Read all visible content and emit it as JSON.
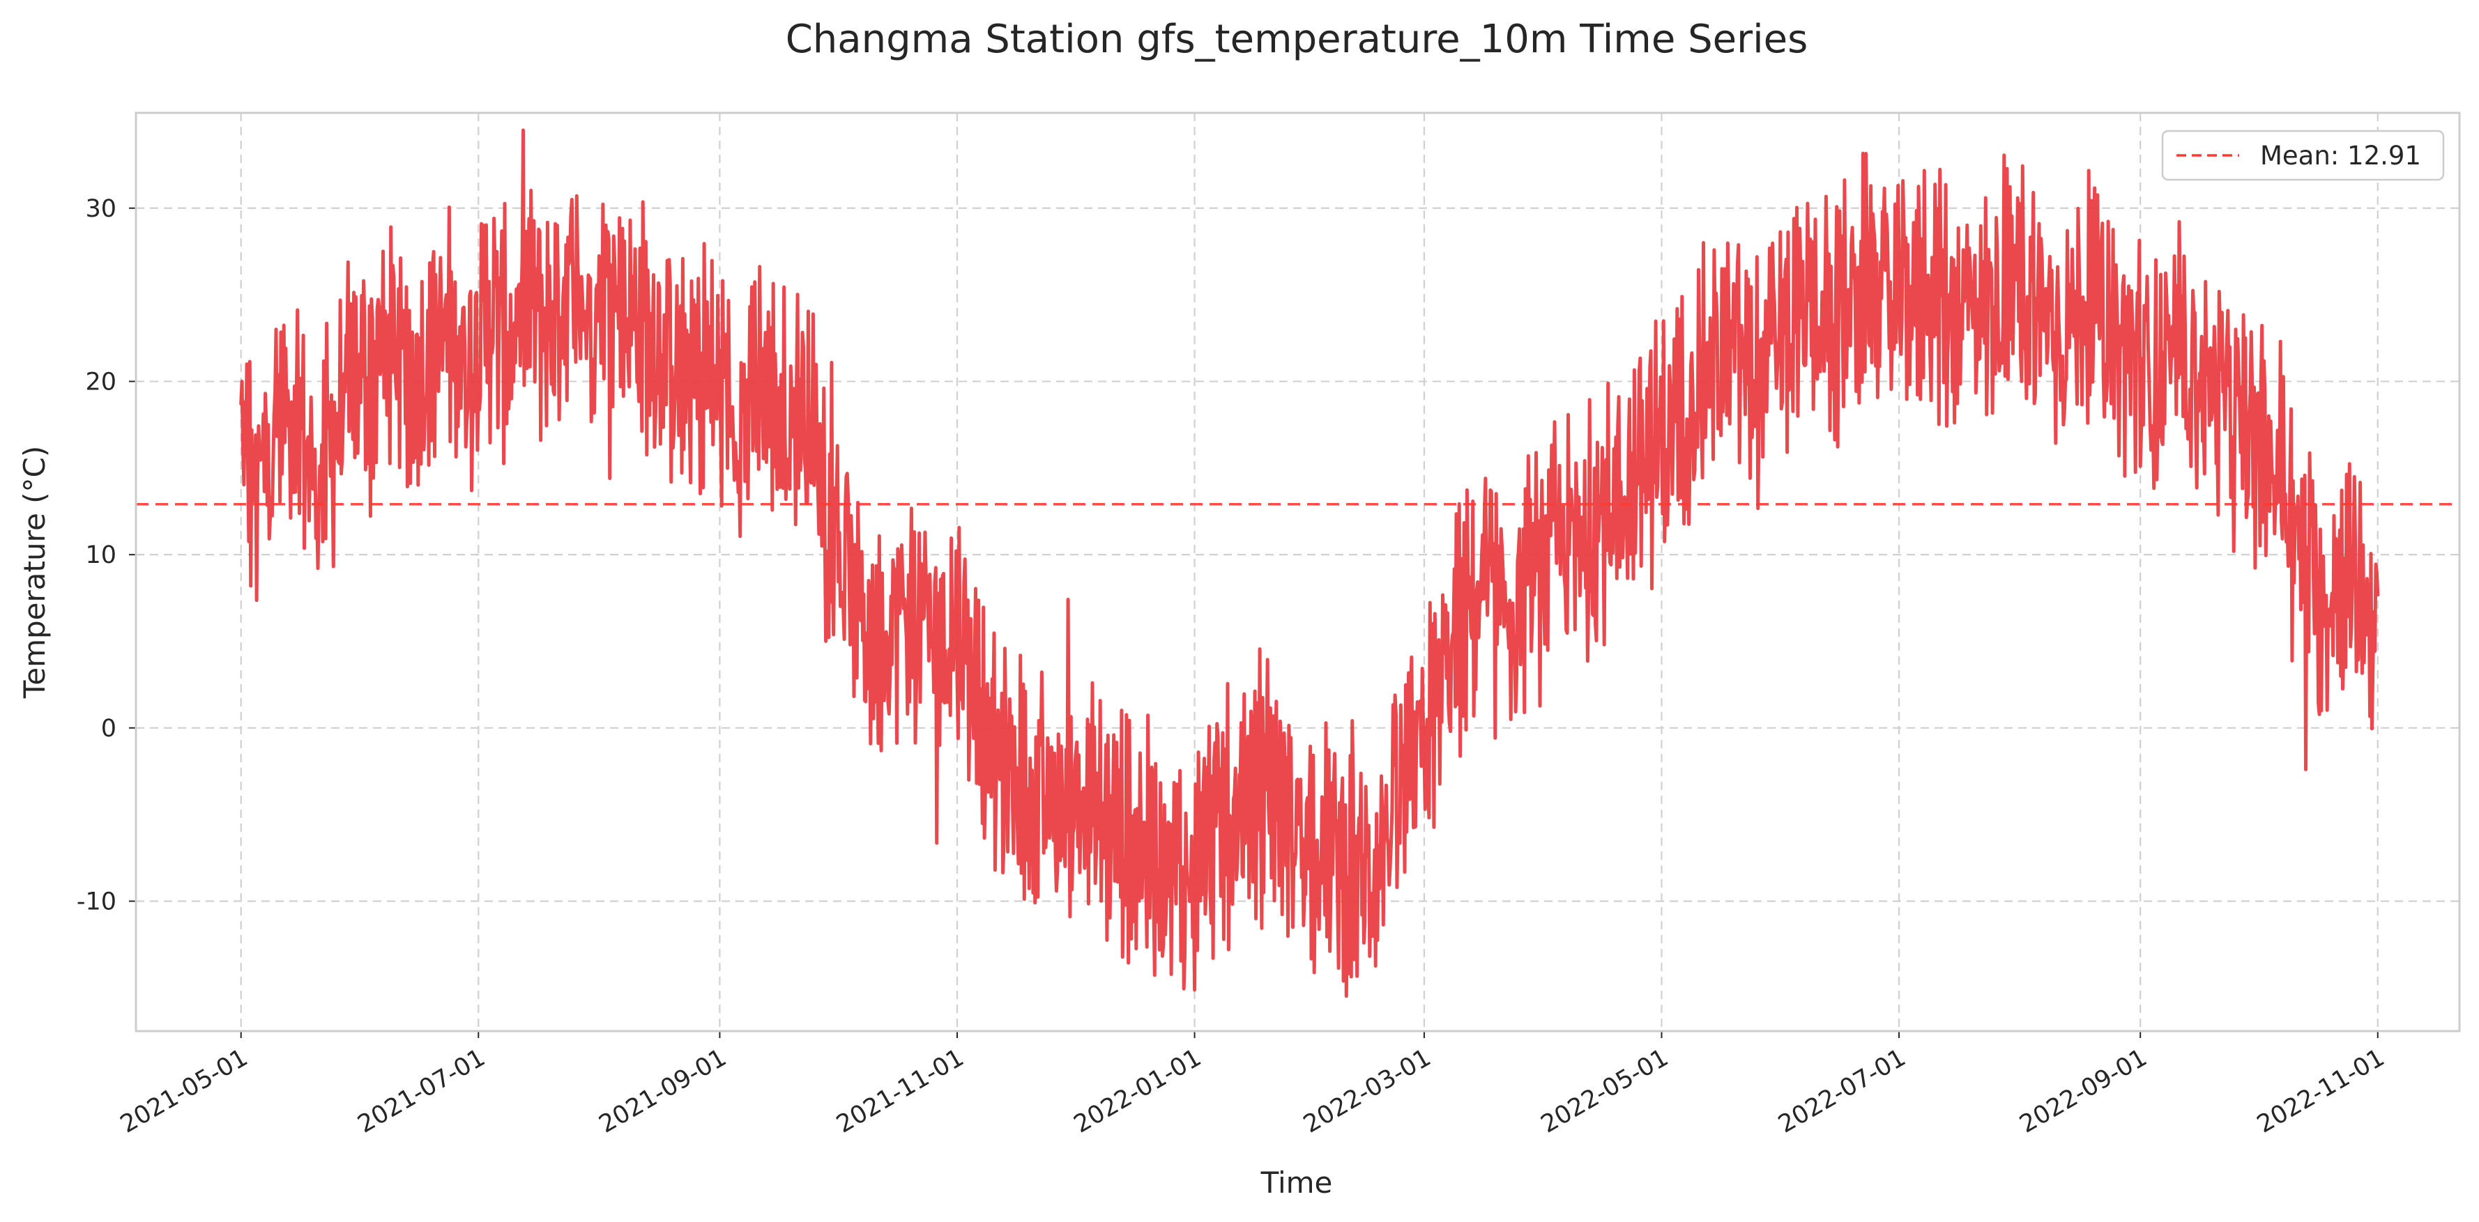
{
  "chart_data": {
    "type": "line",
    "title": "Changma Station gfs_temperature_10m Time Series",
    "xlabel": "Time",
    "ylabel": "Temperature (°C)",
    "x_range": [
      "2021-04-04",
      "2022-11-22"
    ],
    "ylim": [
      -17.5,
      35.5
    ],
    "x_ticks": [
      "2021-05-01",
      "2021-07-01",
      "2021-09-01",
      "2021-11-01",
      "2022-01-01",
      "2022-03-01",
      "2022-05-01",
      "2022-07-01",
      "2022-09-01",
      "2022-11-01"
    ],
    "y_ticks": [
      -10,
      0,
      10,
      20,
      30
    ],
    "y_tick_labels": [
      "-10",
      "0",
      "10",
      "20",
      "30"
    ],
    "grid": true,
    "legend_position": "upper right",
    "series": [
      {
        "color": "#e8383d",
        "x": [
          "2021-05-01",
          "2021-05-05",
          "2021-05-10",
          "2021-05-15",
          "2021-05-20",
          "2021-05-25",
          "2021-05-30",
          "2021-06-04",
          "2021-06-09",
          "2021-06-14",
          "2021-06-19",
          "2021-06-24",
          "2021-06-29",
          "2021-07-04",
          "2021-07-09",
          "2021-07-14",
          "2021-07-19",
          "2021-07-24",
          "2021-07-29",
          "2021-08-03",
          "2021-08-08",
          "2021-08-13",
          "2021-08-18",
          "2021-08-23",
          "2021-08-28",
          "2021-09-02",
          "2021-09-07",
          "2021-09-12",
          "2021-09-17",
          "2021-09-22",
          "2021-09-27",
          "2021-10-02",
          "2021-10-07",
          "2021-10-12",
          "2021-10-17",
          "2021-10-22",
          "2021-10-27",
          "2021-11-01",
          "2021-11-06",
          "2021-11-11",
          "2021-11-16",
          "2021-11-21",
          "2021-11-26",
          "2021-12-01",
          "2021-12-06",
          "2021-12-11",
          "2021-12-16",
          "2021-12-21",
          "2021-12-26",
          "2021-12-31",
          "2022-01-05",
          "2022-01-10",
          "2022-01-15",
          "2022-01-20",
          "2022-01-25",
          "2022-01-30",
          "2022-02-04",
          "2022-02-09",
          "2022-02-14",
          "2022-02-19",
          "2022-02-24",
          "2022-03-01",
          "2022-03-06",
          "2022-03-11",
          "2022-03-16",
          "2022-03-21",
          "2022-03-26",
          "2022-03-31",
          "2022-04-05",
          "2022-04-10",
          "2022-04-15",
          "2022-04-20",
          "2022-04-25",
          "2022-04-30",
          "2022-05-05",
          "2022-05-10",
          "2022-05-15",
          "2022-05-20",
          "2022-05-25",
          "2022-05-30",
          "2022-06-04",
          "2022-06-09",
          "2022-06-14",
          "2022-06-19",
          "2022-06-24",
          "2022-06-29",
          "2022-07-04",
          "2022-07-09",
          "2022-07-14",
          "2022-07-19",
          "2022-07-24",
          "2022-07-29",
          "2022-08-03",
          "2022-08-08",
          "2022-08-13",
          "2022-08-18",
          "2022-08-23",
          "2022-08-28",
          "2022-09-02",
          "2022-09-07",
          "2022-09-12",
          "2022-09-17",
          "2022-09-22",
          "2022-09-27",
          "2022-10-02",
          "2022-10-07",
          "2022-10-12",
          "2022-10-17",
          "2022-10-22",
          "2022-10-27",
          "2022-11-01"
        ],
        "values": [
          17,
          13,
          18,
          19,
          14,
          17,
          20,
          21,
          22,
          20,
          22,
          23,
          21,
          24,
          22,
          25,
          23,
          26,
          24,
          26,
          24,
          23,
          22,
          20,
          21,
          19,
          18,
          20,
          18,
          19,
          15,
          10,
          6,
          5,
          7,
          6,
          5,
          6,
          2,
          -2,
          -3,
          -4,
          -5,
          -4,
          -5,
          -6,
          -6,
          -7,
          -8,
          -9,
          -6,
          -5,
          -4,
          -2,
          -5,
          -6,
          -7,
          -8,
          -9,
          -6,
          -4,
          -1,
          3,
          6,
          8,
          6,
          7,
          9,
          11,
          10,
          12,
          13,
          15,
          16,
          18,
          20,
          21,
          22,
          20,
          22,
          23,
          24,
          23,
          25,
          26,
          24,
          25,
          26,
          24,
          25,
          24,
          26,
          25,
          24,
          23,
          25,
          24,
          22,
          21,
          20,
          22,
          20,
          19,
          17,
          16,
          15,
          10,
          7,
          9,
          8,
          6
        ]
      }
    ],
    "mean_line": {
      "value": 12.91,
      "label": "Mean: 12.91",
      "color": "#ff3b30",
      "style": "dashed"
    }
  }
}
